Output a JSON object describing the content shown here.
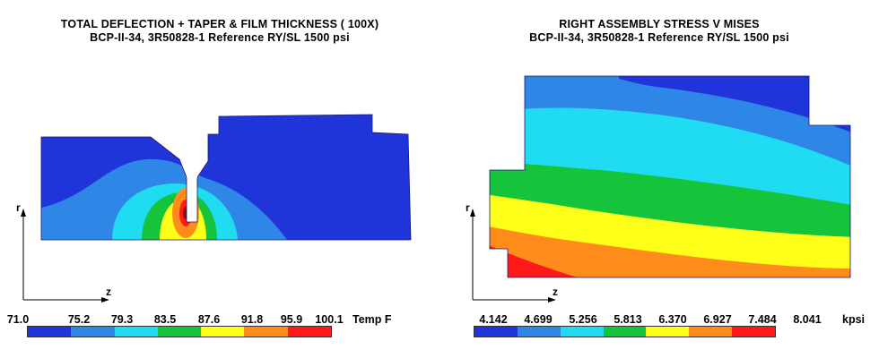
{
  "left_plot": {
    "title_line1": "TOTAL DEFLECTION + TAPER & FILM THICKNESS ( 100X)",
    "title_line2": "BCP-II-34, 3R50828-1 Reference RY/SL 1500 psi",
    "axis_r": "r",
    "axis_z": "z",
    "legend_ticks": [
      "71.0",
      "75.2",
      "79.3",
      "83.5",
      "87.6",
      "91.8",
      "95.9",
      "100.1"
    ],
    "legend_unit": "Temp F"
  },
  "right_plot": {
    "title_line1": "RIGHT ASSEMBLY STRESS V MISES",
    "title_line2": "BCP-II-34, 3R50828-1 Reference RY/SL 1500 psi",
    "axis_r": "r",
    "axis_z": "z",
    "legend_ticks": [
      "4.142",
      "4.699",
      "5.256",
      "5.813",
      "6.370",
      "6.927",
      "7.484",
      "8.041"
    ],
    "legend_unit": "kpsi"
  },
  "colors": {
    "band1": "#1f34d9",
    "band2": "#2e86e6",
    "band3": "#1fdcf2",
    "band4": "#16c43c",
    "band5": "#ffff1a",
    "band6": "#ff8c1a",
    "band7": "#ff1a1a"
  }
}
